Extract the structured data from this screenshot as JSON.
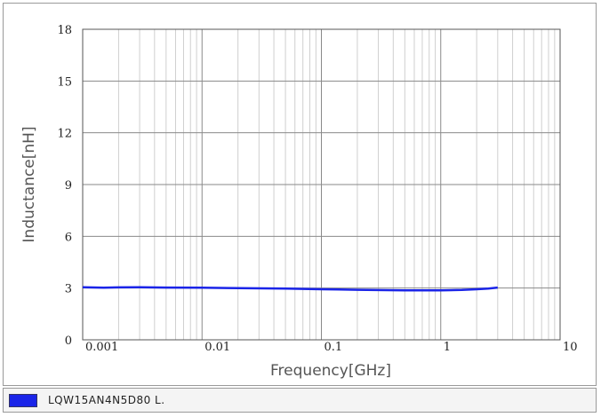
{
  "chart_data": {
    "type": "line",
    "title": "",
    "xlabel": "Frequency[GHz]",
    "ylabel": "Inductance[nH]",
    "x_scale": "log",
    "xlim": [
      0.001,
      10
    ],
    "ylim": [
      0,
      18
    ],
    "x_ticks": [
      0.001,
      0.01,
      0.1,
      1,
      10
    ],
    "x_tick_labels": [
      "0.001",
      "0.01",
      "0.1",
      "1",
      "10"
    ],
    "y_ticks": [
      0,
      3,
      6,
      9,
      12,
      15,
      18
    ],
    "y_tick_labels": [
      "0",
      "3",
      "6",
      "9",
      "12",
      "15",
      "18"
    ],
    "grid": true,
    "legend_position": "bottom",
    "series": [
      {
        "name": "LQW15AN4N5D80  L.",
        "color": "#1a24e8",
        "x": [
          0.001,
          0.0015,
          0.002,
          0.003,
          0.005,
          0.01,
          0.02,
          0.05,
          0.1,
          0.2,
          0.5,
          1,
          1.5,
          2,
          2.5,
          3
        ],
        "y": [
          3.05,
          3.02,
          3.04,
          3.05,
          3.03,
          3.02,
          3.0,
          2.97,
          2.93,
          2.9,
          2.87,
          2.87,
          2.89,
          2.93,
          2.97,
          3.03
        ]
      }
    ]
  },
  "legend": {
    "label": "LQW15AN4N5D80  L.",
    "swatch_color": "#1a24e8"
  }
}
